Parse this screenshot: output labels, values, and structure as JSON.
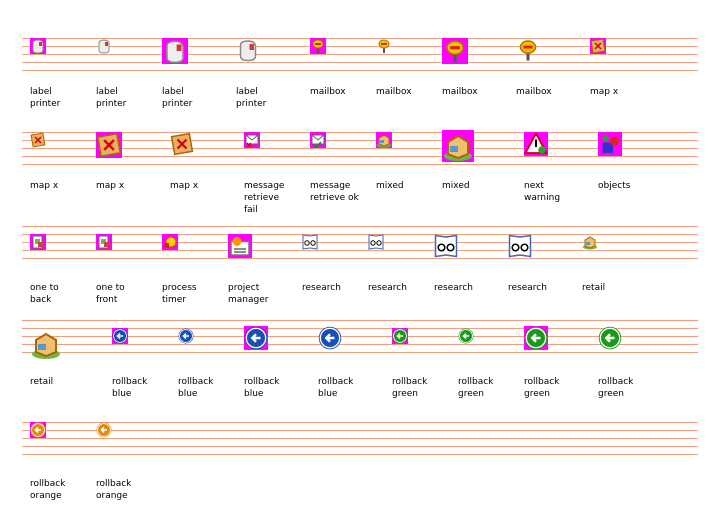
{
  "rows": [
    {
      "items": [
        {
          "label": "label printer"
        },
        {
          "label": "label printer"
        },
        {
          "label": "label printer"
        },
        {
          "label": "label printer"
        },
        {
          "label": "mailbox"
        },
        {
          "label": "mailbox"
        },
        {
          "label": "mailbox"
        },
        {
          "label": "mailbox"
        },
        {
          "label": "map x"
        }
      ]
    },
    {
      "items": [
        {
          "label": "map x"
        },
        {
          "label": "map x"
        },
        {
          "label": "map x"
        },
        {
          "label": "message retrieve fail"
        },
        {
          "label": "message retrieve ok"
        },
        {
          "label": "mixed"
        },
        {
          "label": "mixed"
        },
        {
          "label": "next warning"
        },
        {
          "label": "objects"
        }
      ]
    },
    {
      "items": [
        {
          "label": "one to back"
        },
        {
          "label": "one to front"
        },
        {
          "label": "process timer"
        },
        {
          "label": "project manager"
        },
        {
          "label": "research"
        },
        {
          "label": "research"
        },
        {
          "label": "research"
        },
        {
          "label": "research"
        },
        {
          "label": "retail"
        }
      ]
    },
    {
      "items": [
        {
          "label": "retail"
        },
        {
          "label": "rollback blue"
        },
        {
          "label": "rollback blue"
        },
        {
          "label": "rollback blue"
        },
        {
          "label": "rollback blue"
        },
        {
          "label": "rollback green"
        },
        {
          "label": "rollback green"
        },
        {
          "label": "rollback green"
        },
        {
          "label": "rollback green"
        }
      ]
    },
    {
      "items": [
        {
          "label": "rollback orange"
        },
        {
          "label": "rollback orange"
        }
      ]
    }
  ]
}
